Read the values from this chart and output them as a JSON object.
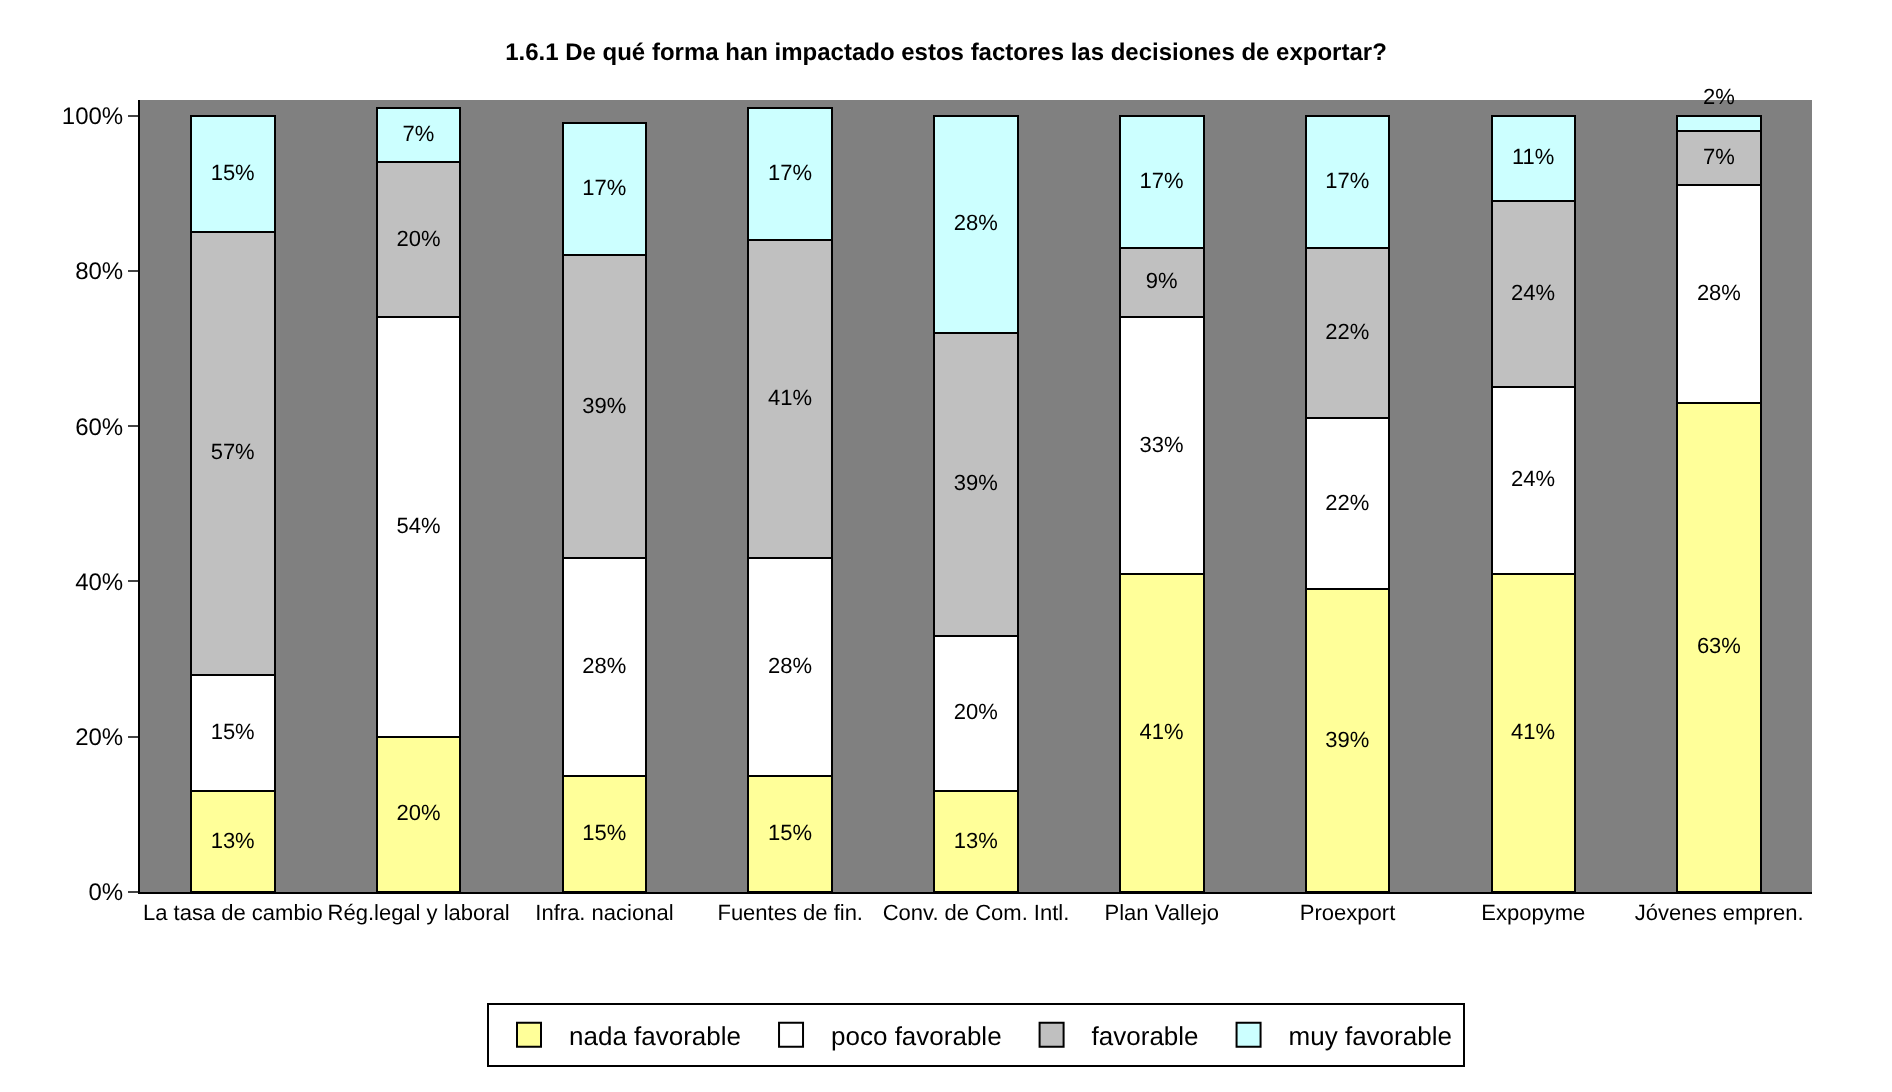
{
  "chart_data": {
    "type": "bar",
    "title": "1.6.1 De qué forma han impactado estos factores las decisiones de exportar?",
    "categories": [
      "La tasa de cambio",
      "Rég.legal y laboral",
      "Infra. nacional",
      "Fuentes de fin.",
      "Conv. de Com. Intl.",
      "Plan Vallejo",
      "Proexport",
      "Expopyme",
      "Jóvenes empren."
    ],
    "stacked": true,
    "series": [
      {
        "name": "nada favorable",
        "color": "#ffff99",
        "values": [
          13,
          20,
          15,
          15,
          13,
          41,
          39,
          41,
          63
        ],
        "value_labels": [
          "13%",
          "20%",
          "15%",
          "15%",
          "13%",
          "41%",
          "39%",
          "41%",
          "63%"
        ]
      },
      {
        "name": "poco favorable",
        "color": "#ffffff",
        "values": [
          15,
          54,
          28,
          28,
          20,
          33,
          22,
          24,
          28
        ],
        "value_labels": [
          "15%",
          "54%",
          "28%",
          "28%",
          "20%",
          "33%",
          "22%",
          "24%",
          "28%"
        ]
      },
      {
        "name": "favorable",
        "color": "#c0c0c0",
        "values": [
          57,
          20,
          39,
          41,
          39,
          9,
          22,
          24,
          7
        ],
        "value_labels": [
          "57%",
          "20%",
          "39%",
          "41%",
          "39%",
          "9%",
          "22%",
          "24%",
          "7%"
        ]
      },
      {
        "name": "muy favorable",
        "color": "#ccffff",
        "values": [
          15,
          7,
          17,
          17,
          28,
          17,
          17,
          11,
          2
        ],
        "value_labels": [
          "15%",
          "7%",
          "17%",
          "17%",
          "28%",
          "17%",
          "17%",
          "11%",
          "2%"
        ]
      }
    ],
    "ylim": [
      0,
      102
    ],
    "yticks": [
      {
        "value": 0,
        "label": "0%"
      },
      {
        "value": 20,
        "label": "20%"
      },
      {
        "value": 40,
        "label": "40%"
      },
      {
        "value": 60,
        "label": "60%"
      },
      {
        "value": 80,
        "label": "80%"
      },
      {
        "value": 100,
        "label": "100%"
      }
    ],
    "grid": false,
    "legend": "bottom"
  }
}
